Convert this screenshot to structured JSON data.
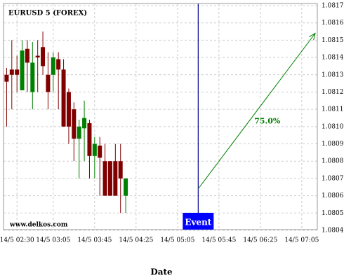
{
  "chart_data": {
    "type": "candlestick",
    "title": "EURUSD 5 (FOREX)",
    "x_label": "Date",
    "watermark": "www.delkos.com",
    "x": [
      "14/5 02:20",
      "14/5 02:25",
      "14/5 02:30",
      "14/5 02:35",
      "14/5 02:40",
      "14/5 02:45",
      "14/5 02:50",
      "14/5 02:55",
      "14/5 03:00",
      "14/5 03:05",
      "14/5 03:10",
      "14/5 03:15",
      "14/5 03:20",
      "14/5 03:25",
      "14/5 03:30",
      "14/5 03:35",
      "14/5 03:40",
      "14/5 03:45",
      "14/5 03:50",
      "14/5 03:55",
      "14/5 04:00",
      "14/5 04:05",
      "14/5 04:10",
      "14/5 04:15"
    ],
    "open": [
      1.0813,
      1.08133,
      1.08133,
      1.08121,
      1.08145,
      1.0812,
      1.08141,
      1.08146,
      1.0813,
      1.0813,
      1.08139,
      1.08133,
      1.0812,
      1.0811,
      1.08093,
      1.08099,
      1.08102,
      1.08083,
      1.08089,
      1.0808,
      1.0808,
      1.0808,
      1.0808,
      1.0806
    ],
    "high": [
      1.08134,
      1.0815,
      1.08141,
      1.0815,
      1.0815,
      1.08149,
      1.0815,
      1.08155,
      1.08143,
      1.08143,
      1.08143,
      1.08139,
      1.08122,
      1.08114,
      1.08104,
      1.08115,
      1.08104,
      1.08094,
      1.08094,
      1.0809,
      1.0808,
      1.0809,
      1.0809,
      1.0807
    ],
    "low": [
      1.081,
      1.0811,
      1.0812,
      1.08121,
      1.0812,
      1.0811,
      1.0812,
      1.0813,
      1.0811,
      1.0812,
      1.0811,
      1.081,
      1.0809,
      1.0808,
      1.0807,
      1.0808,
      1.0807,
      1.0807,
      1.0806,
      1.0806,
      1.0806,
      1.0806,
      1.0805,
      1.0805
    ],
    "close": [
      1.08126,
      1.0813,
      1.0813,
      1.08144,
      1.08137,
      1.08137,
      1.0814,
      1.08135,
      1.0812,
      1.0814,
      1.08133,
      1.081,
      1.081,
      1.08093,
      1.081,
      1.08105,
      1.08083,
      1.0809,
      1.08082,
      1.0806,
      1.0806,
      1.0806,
      1.0807,
      1.0807
    ],
    "up_color": "#008000",
    "down_color": "#800000",
    "xlim": [
      "14/5 02:17",
      "14/5 07:20"
    ],
    "xticks": [
      "14/5 02:30",
      "14/5 03:05",
      "14/5 03:45",
      "14/5 04:25",
      "14/5 05:05",
      "14/5 05:45",
      "14/5 06:25",
      "14/5 07:05"
    ],
    "ylim": [
      1.0804,
      1.0817
    ],
    "yticks": [
      1.0804,
      1.0805,
      1.0806,
      1.0807,
      1.0808,
      1.0809,
      {
        "value": 1.081,
        "label": "1.0810"
      },
      1.0811,
      1.0812,
      1.0813,
      1.0814,
      1.0815,
      1.0816,
      1.0817
    ],
    "grid": true,
    "event": {
      "label": "Event",
      "x": "14/5 05:25",
      "color": "#00008b"
    },
    "arrow": {
      "x": [
        "14/5 05:25",
        "14/5 07:18"
      ],
      "y": [
        1.08064,
        1.08154
      ],
      "label": "75.0%",
      "color": "#008000"
    }
  }
}
